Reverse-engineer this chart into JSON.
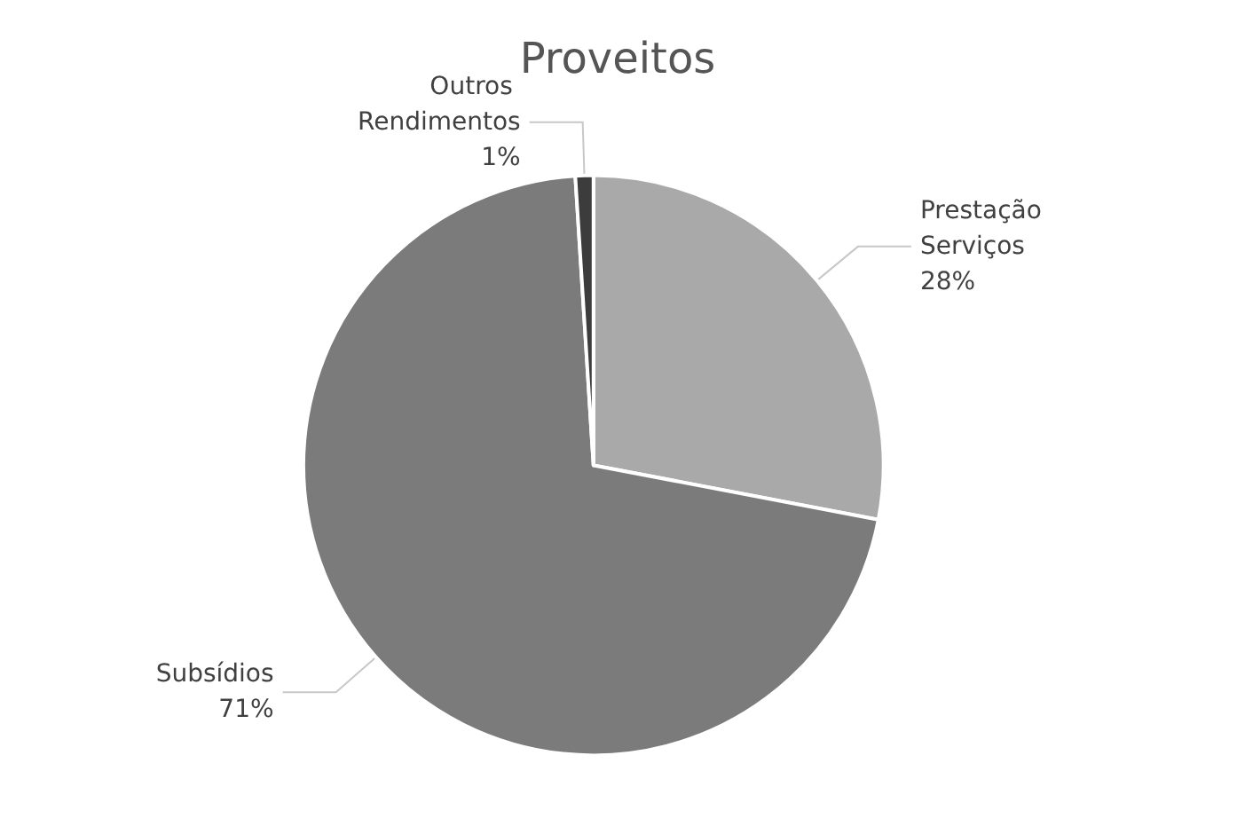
{
  "chart_data": {
    "type": "pie",
    "title": "Proveitos",
    "categories": [
      "Prestação Serviços",
      "Subsídios",
      "Outros Rendimentos"
    ],
    "values": [
      28,
      71,
      1
    ],
    "value_labels": [
      "28%",
      "71%",
      "1%"
    ],
    "colors": [
      "#a9a9a9",
      "#7b7b7b",
      "#3c3c3c"
    ],
    "legend": false
  }
}
